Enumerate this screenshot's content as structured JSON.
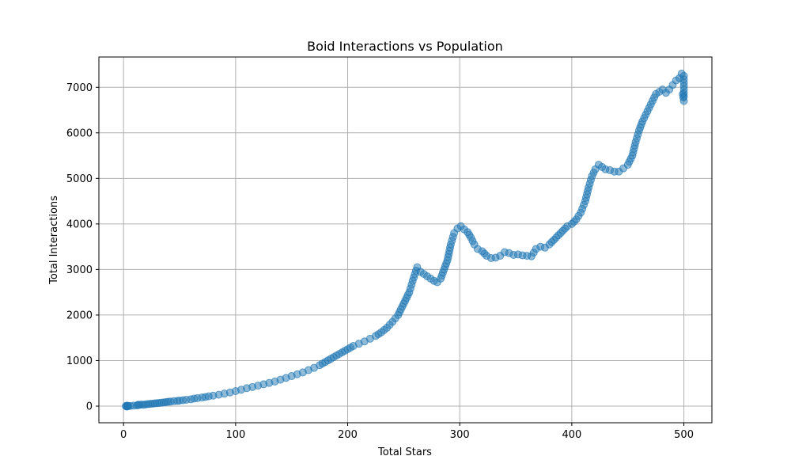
{
  "chart_data": {
    "type": "scatter",
    "title": "Boid Interactions vs Population",
    "xlabel": "Total Stars",
    "ylabel": "Total Interactions",
    "xlim": [
      -22,
      525
    ],
    "ylim": [
      -365,
      7665
    ],
    "xticks": [
      0,
      100,
      200,
      300,
      400,
      500
    ],
    "yticks": [
      0,
      1000,
      2000,
      3000,
      4000,
      5000,
      6000,
      7000
    ],
    "grid": true,
    "marker_color": "#1f77b4",
    "marker_alpha": 0.5,
    "series": [
      {
        "points": [
          [
            2,
            0
          ],
          [
            3,
            10
          ],
          [
            3,
            -10
          ],
          [
            4,
            5
          ],
          [
            4,
            0
          ],
          [
            3,
            0
          ],
          [
            12,
            15
          ],
          [
            13,
            30
          ],
          [
            14,
            25
          ],
          [
            16,
            35
          ],
          [
            18,
            30
          ],
          [
            20,
            40
          ],
          [
            22,
            45
          ],
          [
            24,
            50
          ],
          [
            26,
            55
          ],
          [
            28,
            60
          ],
          [
            30,
            65
          ],
          [
            32,
            70
          ],
          [
            34,
            75
          ],
          [
            36,
            80
          ],
          [
            38,
            90
          ],
          [
            40,
            95
          ],
          [
            42,
            100
          ],
          [
            45,
            110
          ],
          [
            48,
            115
          ],
          [
            50,
            120
          ],
          [
            53,
            130
          ],
          [
            56,
            140
          ],
          [
            60,
            150
          ],
          [
            63,
            165
          ],
          [
            66,
            175
          ],
          [
            70,
            190
          ],
          [
            73,
            200
          ],
          [
            76,
            215
          ],
          [
            80,
            230
          ],
          [
            85,
            250
          ],
          [
            90,
            275
          ],
          [
            95,
            300
          ],
          [
            100,
            330
          ],
          [
            105,
            360
          ],
          [
            110,
            395
          ],
          [
            115,
            420
          ],
          [
            120,
            450
          ],
          [
            125,
            480
          ],
          [
            130,
            510
          ],
          [
            135,
            540
          ],
          [
            140,
            580
          ],
          [
            145,
            620
          ],
          [
            150,
            660
          ],
          [
            155,
            700
          ],
          [
            160,
            740
          ],
          [
            165,
            790
          ],
          [
            170,
            840
          ],
          [
            175,
            900
          ],
          [
            180,
            970
          ],
          [
            185,
            1040
          ],
          [
            190,
            1110
          ],
          [
            195,
            1180
          ],
          [
            200,
            1250
          ],
          [
            205,
            1320
          ],
          [
            210,
            1370
          ],
          [
            215,
            1420
          ],
          [
            220,
            1480
          ],
          [
            225,
            1540
          ],
          [
            230,
            1620
          ],
          [
            235,
            1720
          ],
          [
            240,
            1850
          ],
          [
            245,
            2000
          ],
          [
            250,
            2250
          ],
          [
            255,
            2500
          ],
          [
            258,
            2750
          ],
          [
            260,
            2900
          ],
          [
            262,
            3050
          ],
          [
            265,
            2950
          ],
          [
            268,
            2900
          ],
          [
            271,
            2850
          ],
          [
            274,
            2800
          ],
          [
            277,
            2750
          ],
          [
            280,
            2720
          ],
          [
            283,
            2800
          ],
          [
            286,
            3000
          ],
          [
            289,
            3200
          ],
          [
            292,
            3550
          ],
          [
            295,
            3800
          ],
          [
            298,
            3900
          ],
          [
            301,
            3950
          ],
          [
            304,
            3880
          ],
          [
            307,
            3820
          ],
          [
            310,
            3700
          ],
          [
            313,
            3550
          ],
          [
            316,
            3450
          ],
          [
            320,
            3400
          ],
          [
            324,
            3300
          ],
          [
            328,
            3250
          ],
          [
            332,
            3260
          ],
          [
            336,
            3300
          ],
          [
            340,
            3380
          ],
          [
            344,
            3360
          ],
          [
            348,
            3320
          ],
          [
            352,
            3330
          ],
          [
            356,
            3310
          ],
          [
            360,
            3300
          ],
          [
            364,
            3290
          ],
          [
            368,
            3450
          ],
          [
            372,
            3500
          ],
          [
            376,
            3480
          ],
          [
            380,
            3550
          ],
          [
            384,
            3650
          ],
          [
            388,
            3750
          ],
          [
            392,
            3850
          ],
          [
            396,
            3950
          ],
          [
            400,
            4000
          ],
          [
            404,
            4100
          ],
          [
            408,
            4250
          ],
          [
            412,
            4500
          ],
          [
            415,
            4800
          ],
          [
            418,
            5050
          ],
          [
            421,
            5200
          ],
          [
            424,
            5300
          ],
          [
            427,
            5250
          ],
          [
            430,
            5200
          ],
          [
            434,
            5180
          ],
          [
            438,
            5150
          ],
          [
            442,
            5150
          ],
          [
            446,
            5220
          ],
          [
            450,
            5300
          ],
          [
            454,
            5500
          ],
          [
            457,
            5800
          ],
          [
            460,
            6050
          ],
          [
            463,
            6250
          ],
          [
            466,
            6400
          ],
          [
            469,
            6550
          ],
          [
            472,
            6700
          ],
          [
            475,
            6850
          ],
          [
            478,
            6900
          ],
          [
            481,
            6950
          ],
          [
            484,
            6880
          ],
          [
            487,
            6950
          ],
          [
            490,
            7050
          ],
          [
            493,
            7150
          ],
          [
            496,
            7200
          ],
          [
            498,
            7300
          ],
          [
            500,
            7250
          ],
          [
            500,
            7100
          ],
          [
            500,
            6950
          ],
          [
            500,
            6800
          ],
          [
            500,
            6700
          ],
          [
            499,
            6850
          ]
        ]
      }
    ]
  }
}
